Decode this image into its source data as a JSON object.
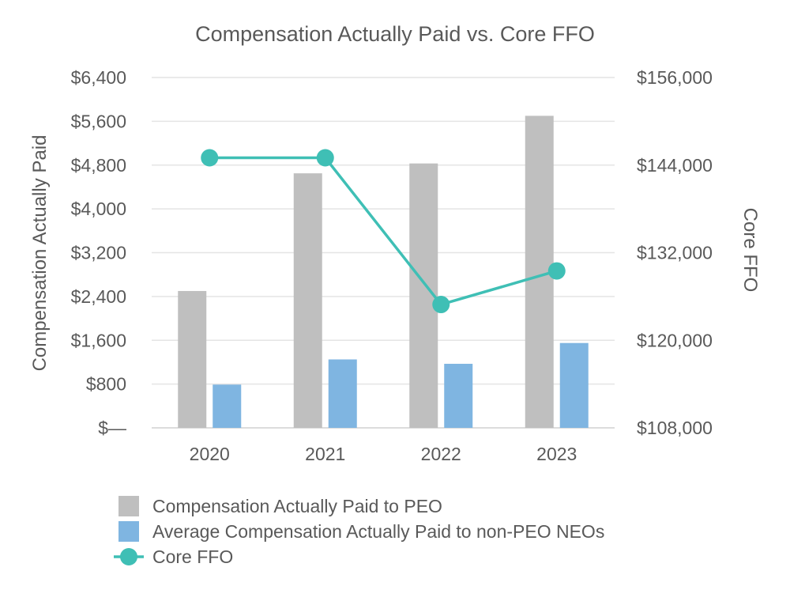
{
  "chart_data": {
    "type": "bar+line",
    "title": "Compensation Actually Paid vs. Core FFO",
    "categories": [
      "2020",
      "2021",
      "2022",
      "2023"
    ],
    "y_left": {
      "label": "Compensation Actually Paid",
      "ylim": [
        0,
        6400
      ],
      "ticks": [
        0,
        800,
        1600,
        2400,
        3200,
        4000,
        4800,
        5600,
        6400
      ],
      "tick_labels": [
        "$—",
        "$800",
        "$1,600",
        "$2,400",
        "$3,200",
        "$4,000",
        "$4,800",
        "$5,600",
        "$6,400"
      ]
    },
    "y_right": {
      "label": "Core FFO",
      "ylim": [
        108000,
        156000
      ],
      "ticks": [
        108000,
        120000,
        132000,
        144000,
        156000
      ],
      "tick_labels": [
        "$108,000",
        "$120,000",
        "$132,000",
        "$144,000",
        "$156,000"
      ]
    },
    "series": [
      {
        "name": "Compensation Actually Paid to PEO",
        "kind": "bar",
        "axis": "left",
        "color": "#bfbfbf",
        "values": [
          2500,
          4650,
          4830,
          5700
        ]
      },
      {
        "name": "Average Compensation Actually Paid to non-PEO NEOs",
        "kind": "bar",
        "axis": "left",
        "color": "#7fb5e1",
        "values": [
          790,
          1250,
          1170,
          1550
        ]
      },
      {
        "name": "Core FFO",
        "kind": "line",
        "axis": "right",
        "color": "#3fbfb5",
        "values": [
          145000,
          145000,
          124900,
          129500
        ]
      }
    ],
    "grid": true,
    "legend": "bottom"
  }
}
